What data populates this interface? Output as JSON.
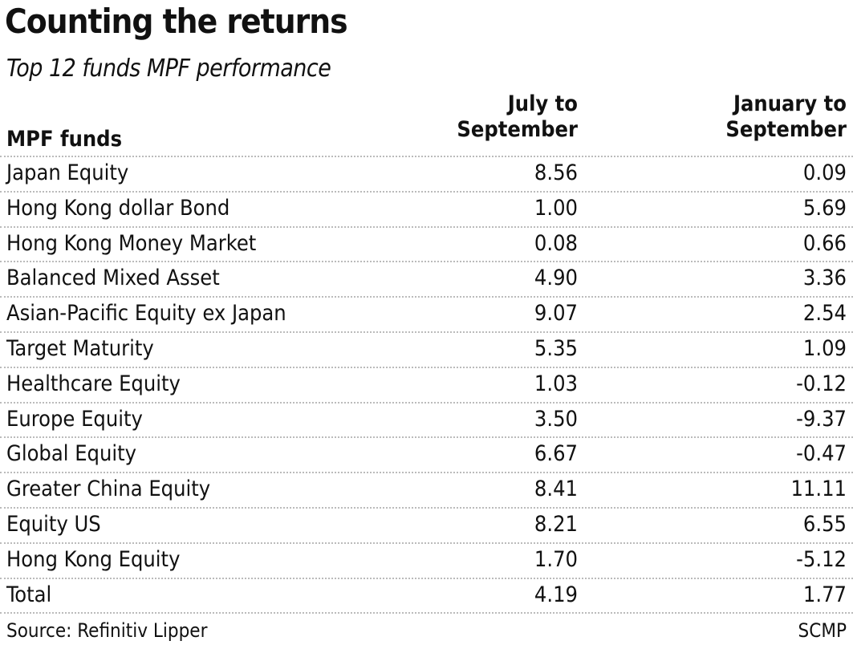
{
  "header": {
    "title": "Counting the returns",
    "subtitle": "Top 12 funds MPF performance"
  },
  "table": {
    "columns": [
      "MPF funds",
      "July to\nSeptember",
      "January to\nSeptember"
    ],
    "rows": [
      [
        "Japan Equity",
        "8.56",
        "0.09"
      ],
      [
        "Hong Kong dollar Bond",
        "1.00",
        "5.69"
      ],
      [
        "Hong Kong Money Market",
        "0.08",
        "0.66"
      ],
      [
        "Balanced Mixed Asset",
        "4.90",
        "3.36"
      ],
      [
        "Asian-Pacific Equity ex Japan",
        "9.07",
        "2.54"
      ],
      [
        "Target Maturity",
        "5.35",
        "1.09"
      ],
      [
        "Healthcare Equity",
        "1.03",
        "-0.12"
      ],
      [
        "Europe Equity",
        "3.50",
        "-9.37"
      ],
      [
        "Global Equity",
        "6.67",
        "-0.47"
      ],
      [
        "Greater China Equity",
        "8.41",
        "11.11"
      ],
      [
        "Equity US",
        "8.21",
        "6.55"
      ],
      [
        "Hong Kong Equity",
        "1.70",
        "-5.12"
      ],
      [
        "Total",
        "4.19",
        "1.77"
      ]
    ]
  },
  "footer": {
    "source": "Source: Refinitiv Lipper",
    "credit": "SCMP"
  }
}
